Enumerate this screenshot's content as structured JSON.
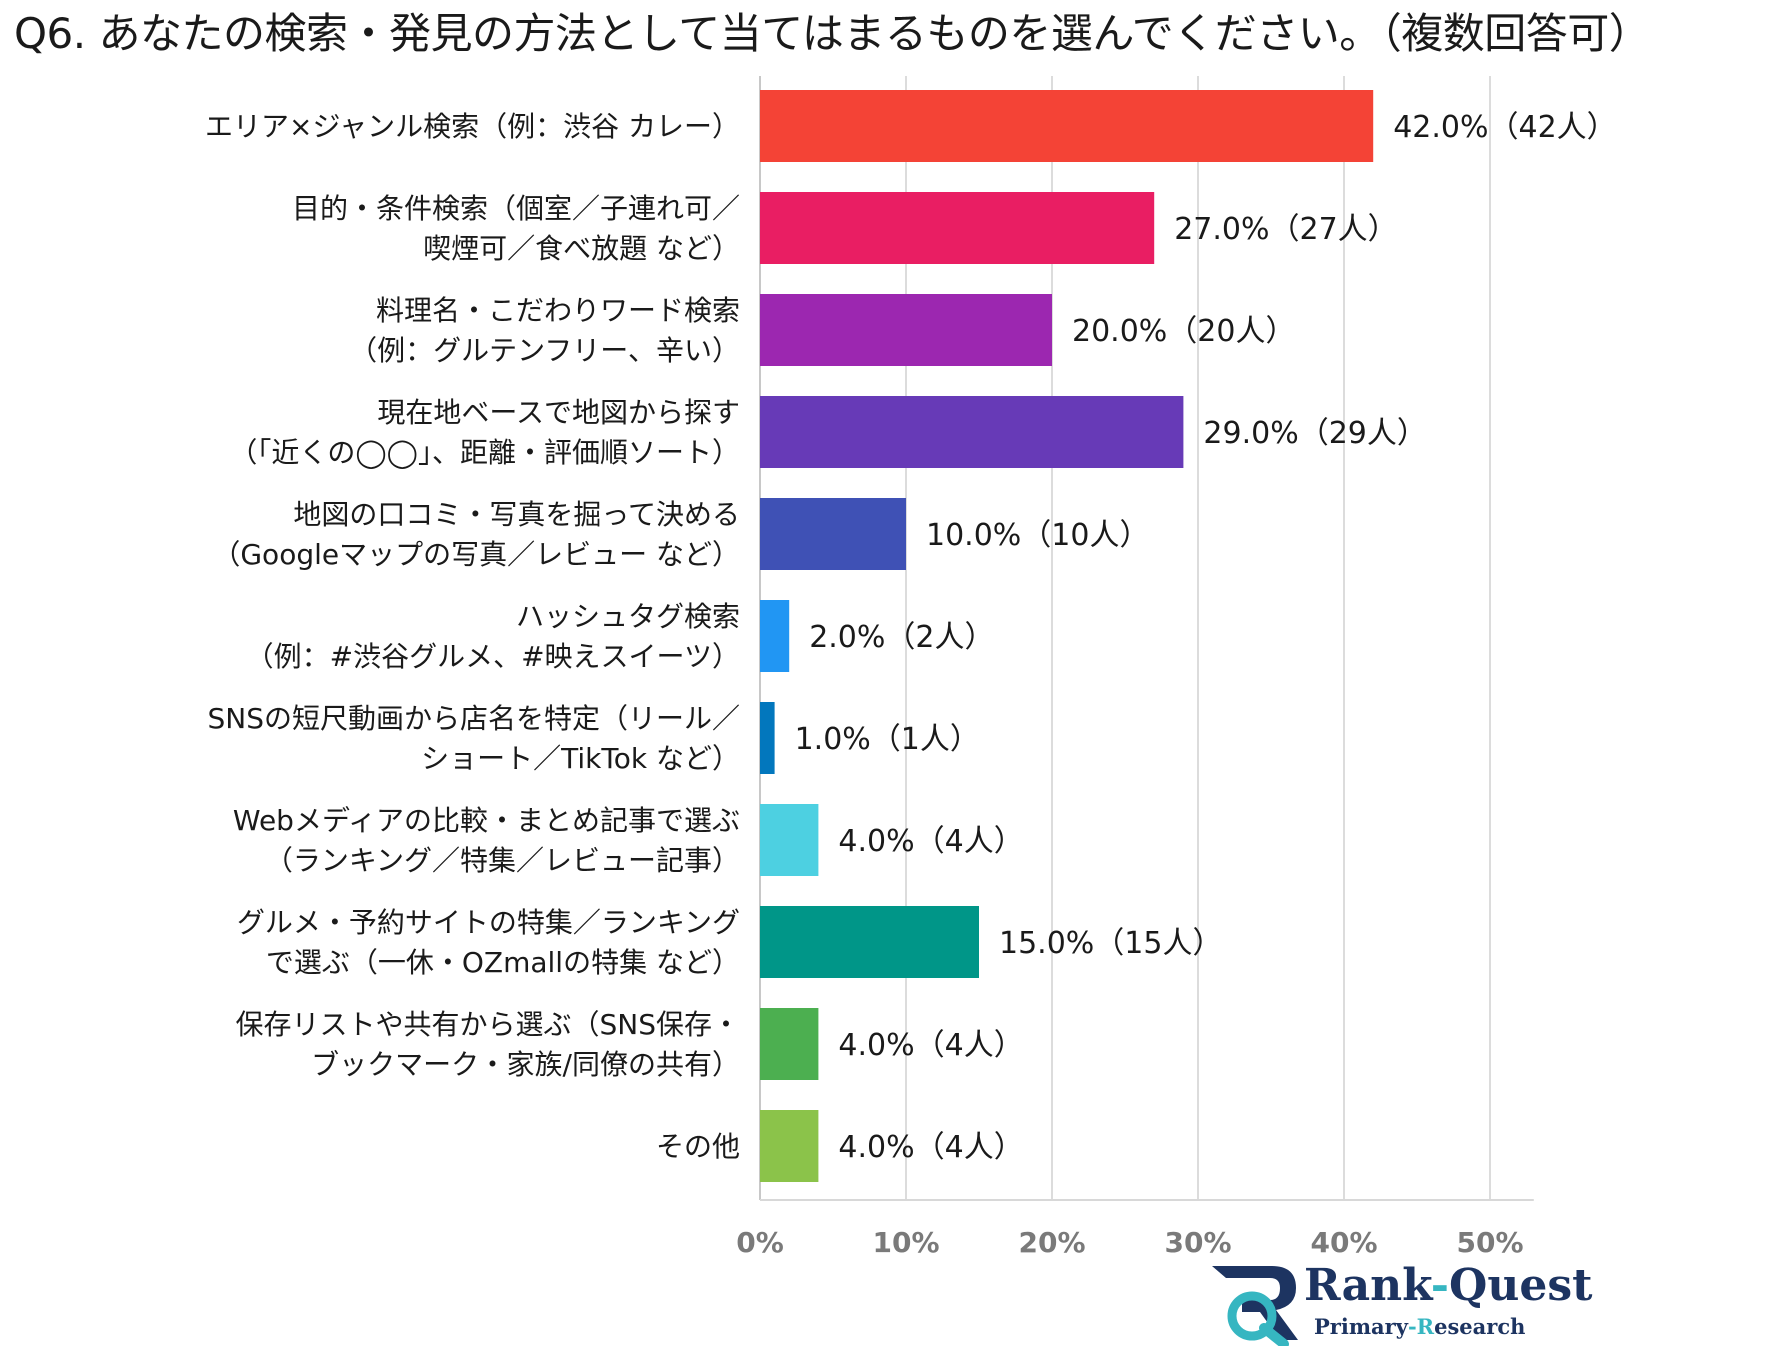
{
  "chart_data": {
    "type": "bar",
    "orientation": "horizontal",
    "title": "Q6. あなたの検索・発見の方法として当てはまるものを選んでください。（複数回答可）",
    "categories": [
      [
        "エリア×ジャンル検索（例：渋谷 カレー）"
      ],
      [
        "目的・条件検索（個室／子連れ可／",
        "喫煙可／食べ放題 など）"
      ],
      [
        "料理名・こだわりワード検索",
        "（例：グルテンフリー、辛い）"
      ],
      [
        "現在地ベースで地図から探す",
        "（「近くの◯◯」、距離・評価順ソート）"
      ],
      [
        "地図の口コミ・写真を掘って決める",
        "（Googleマップの写真／レビュー など）"
      ],
      [
        "ハッシュタグ検索",
        "（例：#渋谷グルメ、#映えスイーツ）"
      ],
      [
        "SNSの短尺動画から店名を特定（リール／",
        "ショート／TikTok など）"
      ],
      [
        "Webメディアの比較・まとめ記事で選ぶ",
        "（ランキング／特集／レビュー記事）"
      ],
      [
        "グルメ・予約サイトの特集／ランキング",
        "で選ぶ（一休・OZmallの特集 など）"
      ],
      [
        "保存リストや共有から選ぶ（SNS保存・",
        "ブックマーク・家族/同僚の共有）"
      ],
      [
        "その他"
      ]
    ],
    "values": [
      42.0,
      27.0,
      20.0,
      29.0,
      10.0,
      2.0,
      1.0,
      4.0,
      15.0,
      4.0,
      4.0
    ],
    "data_labels": [
      "42.0%（42人）",
      "27.0%（27人）",
      "20.0%（20人）",
      "29.0%（29人）",
      "10.0%（10人）",
      "2.0%（2人）",
      "1.0%（1人）",
      "4.0%（4人）",
      "15.0%（15人）",
      "4.0%（4人）",
      "4.0%（4人）"
    ],
    "colors": [
      "#f44336",
      "#e91e63",
      "#9c27b0",
      "#673ab7",
      "#3f51b5",
      "#2196f3",
      "#0277bd",
      "#4dd0e1",
      "#009688",
      "#4caf50",
      "#8bc34a"
    ],
    "xlim": [
      0,
      53
    ],
    "xticks": [
      0,
      10,
      20,
      30,
      40,
      50
    ],
    "xtick_labels": [
      "0%",
      "10%",
      "20%",
      "30%",
      "40%",
      "50%"
    ],
    "xlabel": "",
    "ylabel": "",
    "grid": true,
    "legend": "none"
  },
  "logo": {
    "name_rank": "Rank",
    "name_dash": "-",
    "name_quest": "Quest",
    "sub_a": "Primary",
    "sub_dash": "-",
    "sub_r": "R",
    "sub_rest": "esearch",
    "navy": "#1d3461",
    "teal": "#36b6c1"
  }
}
